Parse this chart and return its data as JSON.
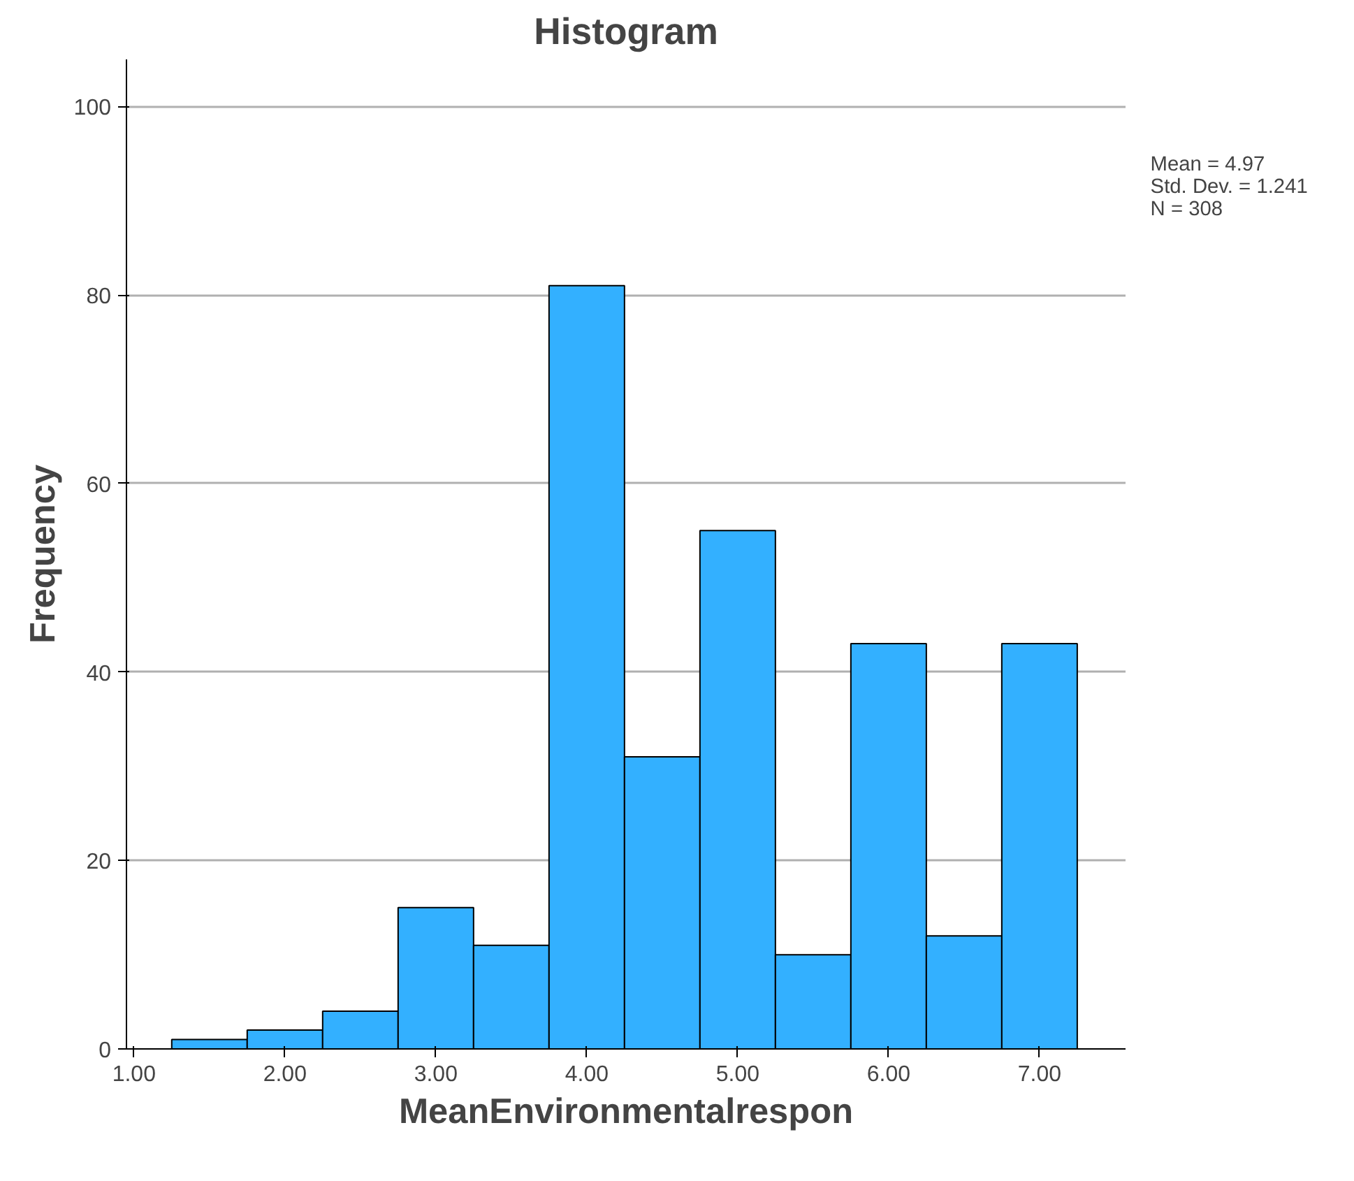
{
  "chart_data": {
    "type": "histogram",
    "title": "Histogram",
    "xlabel": "MeanEnvironmentalrespon",
    "ylabel": "Frequency",
    "bins": [
      1.25,
      1.75,
      2.25,
      2.75,
      3.25,
      3.75,
      4.25,
      4.75,
      5.25,
      5.75,
      6.25,
      6.75,
      7.25
    ],
    "values": [
      1,
      2,
      4,
      15,
      11,
      81,
      31,
      55,
      10,
      43,
      12,
      43
    ],
    "color": "#33b0ff",
    "xlim": [
      0.95,
      7.57
    ],
    "ylim": [
      0,
      105
    ],
    "xticks": [
      {
        "value": 1,
        "label": "1.00"
      },
      {
        "value": 2,
        "label": "2.00"
      },
      {
        "value": 3,
        "label": "3.00"
      },
      {
        "value": 4,
        "label": "4.00"
      },
      {
        "value": 5,
        "label": "5.00"
      },
      {
        "value": 6,
        "label": "6.00"
      },
      {
        "value": 7,
        "label": "7.00"
      }
    ],
    "yticks": [
      0,
      20,
      40,
      60,
      80,
      100
    ],
    "grid": "y",
    "annotations": [
      "Mean = 4.97",
      "Std. Dev. = 1.241",
      "N = 308"
    ]
  }
}
